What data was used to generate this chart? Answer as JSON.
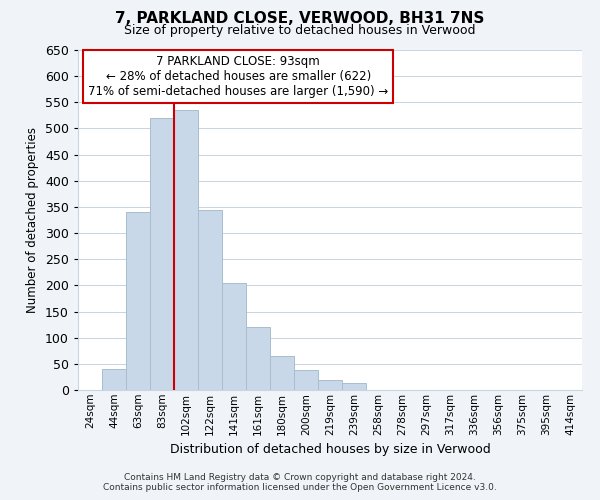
{
  "title": "7, PARKLAND CLOSE, VERWOOD, BH31 7NS",
  "subtitle": "Size of property relative to detached houses in Verwood",
  "xlabel": "Distribution of detached houses by size in Verwood",
  "ylabel": "Number of detached properties",
  "bar_labels": [
    "24sqm",
    "44sqm",
    "63sqm",
    "83sqm",
    "102sqm",
    "122sqm",
    "141sqm",
    "161sqm",
    "180sqm",
    "200sqm",
    "219sqm",
    "239sqm",
    "258sqm",
    "278sqm",
    "297sqm",
    "317sqm",
    "336sqm",
    "356sqm",
    "375sqm",
    "395sqm",
    "414sqm"
  ],
  "bar_values": [
    0,
    40,
    340,
    520,
    535,
    345,
    205,
    120,
    65,
    38,
    20,
    14,
    0,
    0,
    0,
    0,
    0,
    0,
    0,
    0,
    0
  ],
  "bar_color": "#c8d8e8",
  "bar_edge_color": "#a8bece",
  "vline_color": "#cc0000",
  "vline_pos": 3.5,
  "ylim": [
    0,
    650
  ],
  "yticks": [
    0,
    50,
    100,
    150,
    200,
    250,
    300,
    350,
    400,
    450,
    500,
    550,
    600,
    650
  ],
  "annotation_title": "7 PARKLAND CLOSE: 93sqm",
  "annotation_line1": "← 28% of detached houses are smaller (622)",
  "annotation_line2": "71% of semi-detached houses are larger (1,590) →",
  "annotation_box_color": "#ffffff",
  "annotation_box_edge": "#cc0000",
  "footer_line1": "Contains HM Land Registry data © Crown copyright and database right 2024.",
  "footer_line2": "Contains public sector information licensed under the Open Government Licence v3.0.",
  "background_color": "#f0f4f8",
  "plot_bg_color": "#ffffff",
  "grid_color": "#c8d4e0"
}
